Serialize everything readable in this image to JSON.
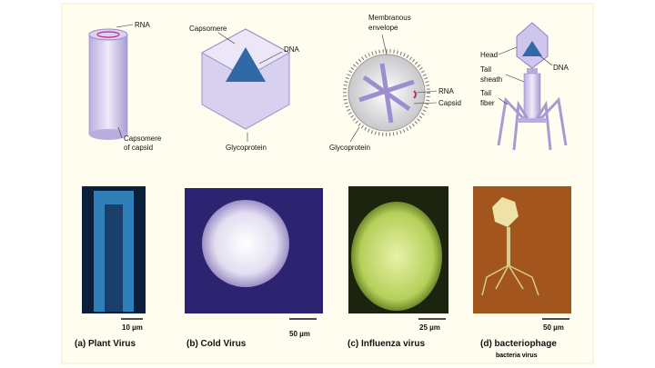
{
  "panels": [
    {
      "labels": [
        [
          "RNA"
        ],
        [
          "Capsomere",
          "of capsid"
        ]
      ],
      "scale": "10 µm",
      "caption": "(a) Plant Virus"
    },
    {
      "labels": [
        [
          "Capsomere"
        ],
        [
          "DNA"
        ],
        [
          "Glycoprotein"
        ]
      ],
      "scale": "50 µm",
      "caption": "(b) Cold Virus"
    },
    {
      "labels": [
        [
          "Membranous",
          "envelope"
        ],
        [
          "RNA"
        ],
        [
          "Capsid"
        ],
        [
          "Glycoprotein"
        ]
      ],
      "scale": "25 µm",
      "caption": "(c) Influenza virus"
    },
    {
      "labels": [
        [
          "Head"
        ],
        [
          "DNA"
        ],
        [
          "Tail",
          "sheath"
        ],
        [
          "Tail",
          "fiber"
        ]
      ],
      "scale": "50 µm",
      "caption": "(d) bacteriophage",
      "note": "bacteria virus"
    }
  ]
}
